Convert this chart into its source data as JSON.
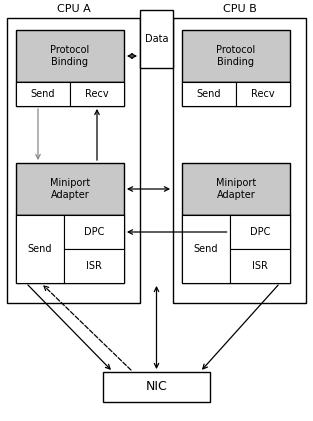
{
  "bg_color": "#ffffff",
  "cpu_a_label": "CPU A",
  "cpu_b_label": "CPU B",
  "data_label": "Data",
  "nic_label": "NIC",
  "protocol_binding": "Protocol\nBinding",
  "miniport_adapter": "Miniport\nAdapter",
  "send_label": "Send",
  "recv_label": "Recv",
  "dpc_label": "DPC",
  "isr_label": "ISR",
  "box_gray": "#c8c8c8",
  "box_white": "#ffffff",
  "box_edge": "#000000"
}
